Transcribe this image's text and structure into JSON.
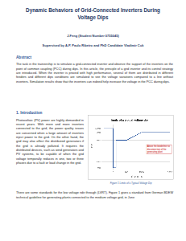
{
  "header": {
    "title": [
      "Dynamic Behaviors of Grid-Connected Inverters During",
      "Voltage Dips"
    ],
    "author": "J.Feng (Student Number 0755045)",
    "supervisors": "Supervised by A.P. Paulo Ribeiro and PhD Candidate Vladimir Cuk"
  },
  "abstract": {
    "heading": "Abstract",
    "text": "The task in the traineeship is to simulate a grid-connected inverter and observe the support of the inverters on the point of common coupling (PCC) during dips. In this article, the principle of a grid inverter and its control strategy are introduced. When the inverter is proved with high performance, several of them are distributed in different feeders and different dips conditions are simulated to see the voltage variations compared to a line without inverters. Simulation results show that the inverters can indeed help increase the voltage in the PCC during dips."
  },
  "section": {
    "heading": "1.   Introduction",
    "paragraphs": [
      "Photovoltaic (PV) power are highly demanded in recent years. With more and more inverters connected to the grid, the power quality issues are concerned when a large amount of inverters inject power to the grid. On the other hand, the grid may also affect the distributed generators if the grid is already polluted. It requires the distributed devices, such as wind generators and PV systems, to be capable of when the grid voltage temporally reduces in one, two or three phases due to a fault or load change in the grid.",
      "There are some standards for the low voltage ride through (LVRT). Figure 1 gives a standard from German BDEW technical guideline for generating plants connected to the medium voltage grid, in June"
    ]
  },
  "figure": {
    "caption": "Figure 1 Limits of a Typical Voltage Dip",
    "annotation": "Above the borderline no disconnection of the generating plant"
  },
  "chart_data": {
    "type": "line",
    "title": "limits of a typical voltage dip",
    "x_label": "time in ms",
    "y_label": "U/Un",
    "x": [
      -500,
      0,
      0,
      150,
      150,
      700,
      1500,
      3000
    ],
    "values": [
      100,
      100,
      0,
      0,
      70,
      70,
      90,
      90
    ],
    "color": "#1f4e9c",
    "xlim": [
      -500,
      3000
    ],
    "xticks": [
      0,
      700,
      1500,
      3000
    ],
    "ylim": [
      0,
      110
    ],
    "yticks": [
      {
        "value": 0,
        "label": "0%"
      },
      {
        "value": 15,
        "label": "15%"
      },
      {
        "value": 70,
        "label": "70%"
      },
      {
        "value": 90,
        "label": "90%"
      },
      {
        "value": 100,
        "label": "100%"
      }
    ],
    "grid": true
  }
}
